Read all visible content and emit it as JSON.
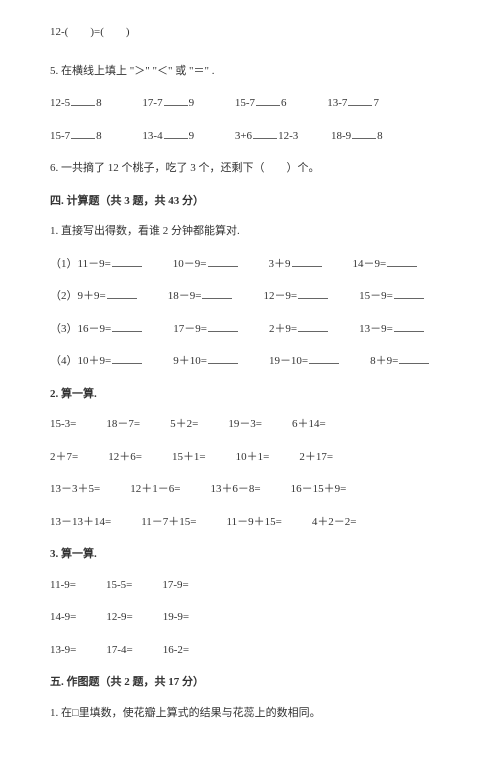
{
  "top_expr": "12-(　　)=(　　)",
  "q5_title": "5. 在横线上填上 \"＞\" \"＜\" 或 \"＝\" .",
  "q5_row1": {
    "a": "12-5",
    "a2": "8",
    "b": "17-7",
    "b2": "9",
    "c": "15-7",
    "c2": "6",
    "d": "13-7",
    "d2": "7"
  },
  "q5_row2": {
    "a": "15-7",
    "a2": "8",
    "b": "13-4",
    "b2": "9",
    "c": "3+6",
    "c2": "12-3",
    "d": "18-9",
    "d2": "8"
  },
  "q6": "6. 一共摘了 12 个桃子，吃了 3 个，还剩下（　　）个。",
  "sec4_title": "四. 计算题（共 3 题，共 43 分）",
  "s4_q1_title": "1. 直接写出得数，看谁 2 分钟都能算对.",
  "s4_q1_rows": [
    {
      "label": "（1）",
      "a": "11－9=",
      "b": "10－9=",
      "c": "3＋9",
      "d": "14－9="
    },
    {
      "label": "（2）",
      "a": "9＋9=",
      "b": "18－9=",
      "c": "12－9=",
      "d": "15－9="
    },
    {
      "label": "（3）",
      "a": "16－9=",
      "b": "17－9=",
      "c": "2＋9=",
      "d": "13－9="
    },
    {
      "label": "（4）",
      "a": "10＋9=",
      "b": "9＋10=",
      "c": "19－10=",
      "d": "8＋9="
    }
  ],
  "s4_q2_title": "2. 算一算.",
  "s4_q2_rows": [
    [
      "15-3=",
      "18－7=",
      "5＋2=",
      "19－3=",
      "6＋14="
    ],
    [
      "2＋7=",
      "12＋6=",
      "15＋1=",
      "10＋1=",
      "2＋17="
    ],
    [
      "13－3＋5=",
      "12＋1－6=",
      "13＋6－8=",
      "16－15＋9="
    ],
    [
      "13－13＋14=",
      "11－7＋15=",
      "11－9＋15=",
      "4＋2－2="
    ]
  ],
  "s4_q3_title": "3. 算一算.",
  "s4_q3_rows": [
    [
      "11-9=",
      "15-5=",
      "17-9="
    ],
    [
      "14-9=",
      "12-9=",
      "19-9="
    ],
    [
      "13-9=",
      "17-4=",
      "16-2="
    ]
  ],
  "sec5_title": "五. 作图题（共 2 题，共 17 分）",
  "s5_q1": "1. 在□里填数，使花瓣上算式的结果与花蕊上的数相同。"
}
